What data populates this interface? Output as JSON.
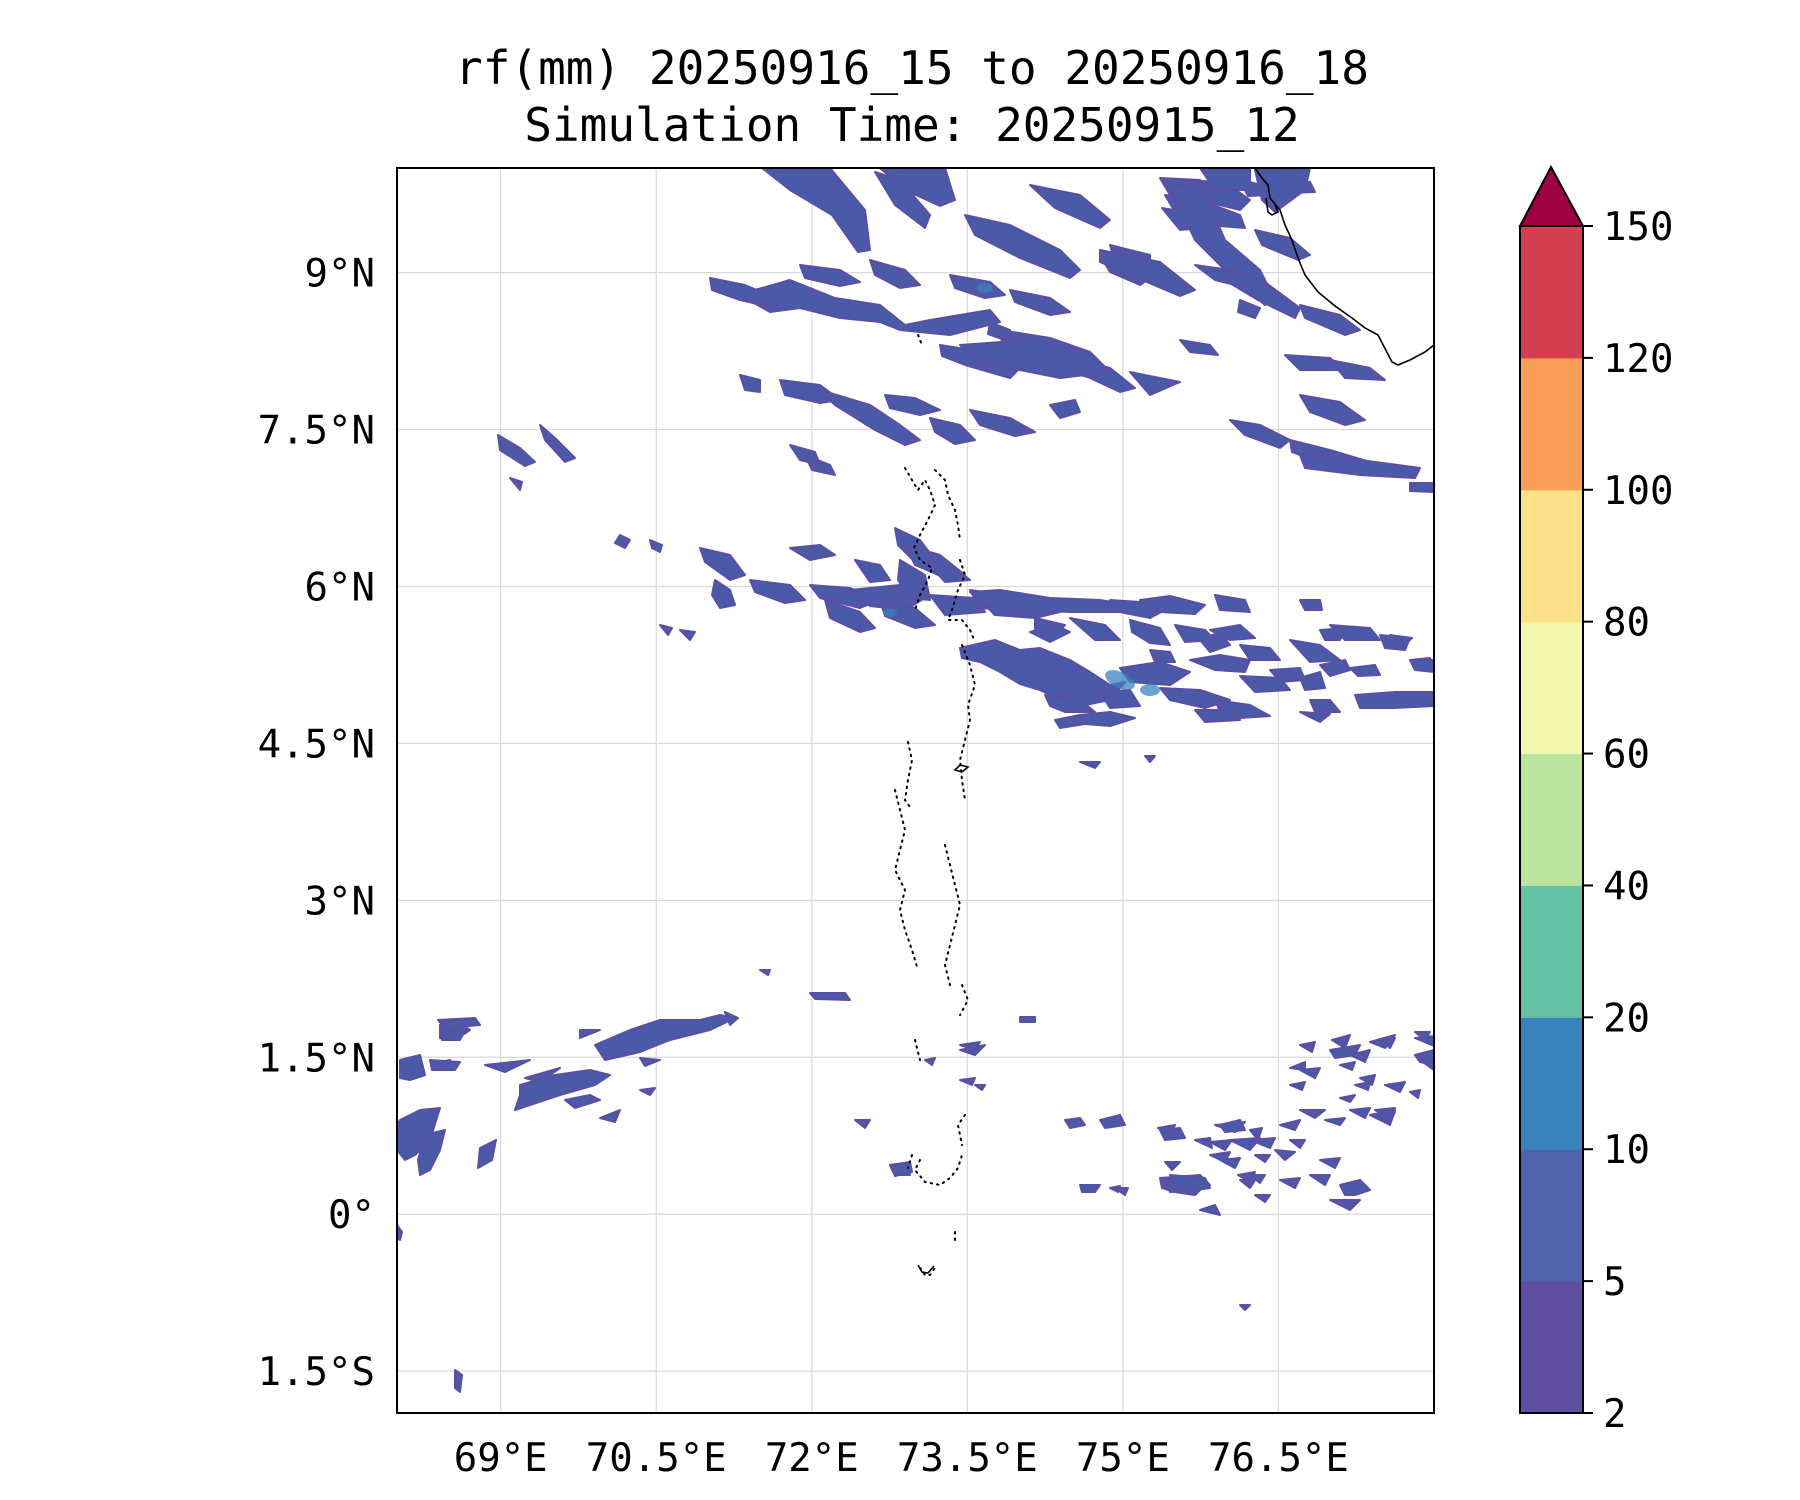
{
  "title": {
    "line1": "rf(mm) 20250916_15 to 20250916_18",
    "line2": "Simulation Time: 20250915_12"
  },
  "map": {
    "lon_range": [
      68.0,
      78.0
    ],
    "lat_range": [
      -1.9,
      10.0
    ],
    "gridlines": true,
    "lon_ticks": [
      {
        "value": 69.0,
        "label": "69°E"
      },
      {
        "value": 70.5,
        "label": "70.5°E"
      },
      {
        "value": 72.0,
        "label": "72°E"
      },
      {
        "value": 73.5,
        "label": "73.5°E"
      },
      {
        "value": 75.0,
        "label": "75°E"
      },
      {
        "value": 76.5,
        "label": "76.5°E"
      }
    ],
    "lat_ticks": [
      {
        "value": 9.0,
        "label": "9°N"
      },
      {
        "value": 7.5,
        "label": "7.5°N"
      },
      {
        "value": 6.0,
        "label": "6°N"
      },
      {
        "value": 4.5,
        "label": "4.5°N"
      },
      {
        "value": 3.0,
        "label": "3°N"
      },
      {
        "value": 1.5,
        "label": "1.5°N"
      },
      {
        "value": 0.0,
        "label": "0°"
      },
      {
        "value": -1.5,
        "label": "1.5°S"
      }
    ],
    "colors": {
      "rain_light": "#5a4fa3",
      "rain_mid": "#4a5aa8",
      "rain_core": "#3a82bd"
    }
  },
  "colorbar": {
    "levels": [
      "2",
      "5",
      "10",
      "20",
      "40",
      "60",
      "80",
      "100",
      "120",
      "150"
    ],
    "colors": [
      "#5e4fa2",
      "#4e63ac",
      "#3a82bd",
      "#66c2a5",
      "#bbe4a0",
      "#f2f7ae",
      "#fce08a",
      "#f99d59",
      "#d53e4f"
    ],
    "extend_color": "#9e0142",
    "extend": "max"
  }
}
